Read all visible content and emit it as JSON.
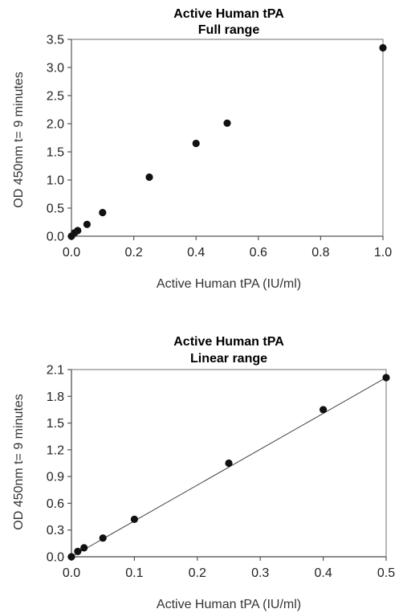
{
  "chart_data": [
    {
      "type": "scatter",
      "title": "Active Human tPA",
      "subtitle": "Full range",
      "xlabel": "Active Human tPA (IU/ml)",
      "ylabel": "OD 450nm t= 9 minutes",
      "xlim": [
        0,
        1.0
      ],
      "ylim": [
        0,
        3.5
      ],
      "xticks": [
        "0.0",
        "0.2",
        "0.4",
        "0.6",
        "0.8",
        "1.0"
      ],
      "yticks": [
        "0.0",
        "0.5",
        "1.0",
        "1.5",
        "2.0",
        "2.5",
        "3.0",
        "3.5"
      ],
      "grid": false,
      "frame": "top-right",
      "x": [
        0,
        0.01,
        0.02,
        0.05,
        0.1,
        0.25,
        0.4,
        0.5,
        1.0
      ],
      "y": [
        0.0,
        0.06,
        0.1,
        0.21,
        0.42,
        1.05,
        1.65,
        2.01,
        3.35
      ]
    },
    {
      "type": "scatter",
      "title": "Active Human tPA",
      "subtitle": "Linear range",
      "xlabel": "Active Human tPA (IU/ml)",
      "ylabel": "OD 450nm t= 9 minutes",
      "xlim": [
        0,
        0.5
      ],
      "ylim": [
        0,
        2.1
      ],
      "xticks": [
        "0.0",
        "0.1",
        "0.2",
        "0.3",
        "0.4",
        "0.5"
      ],
      "yticks": [
        "0.0",
        "0.3",
        "0.6",
        "0.9",
        "1.2",
        "1.5",
        "1.8",
        "2.1"
      ],
      "grid": false,
      "frame": "box",
      "x": [
        0,
        0.01,
        0.02,
        0.05,
        0.1,
        0.25,
        0.4,
        0.5
      ],
      "y": [
        0.0,
        0.06,
        0.1,
        0.21,
        0.42,
        1.05,
        1.65,
        2.01
      ],
      "trendline": {
        "x": [
          0,
          0.5
        ],
        "y": [
          0.0,
          2.01
        ]
      }
    }
  ]
}
